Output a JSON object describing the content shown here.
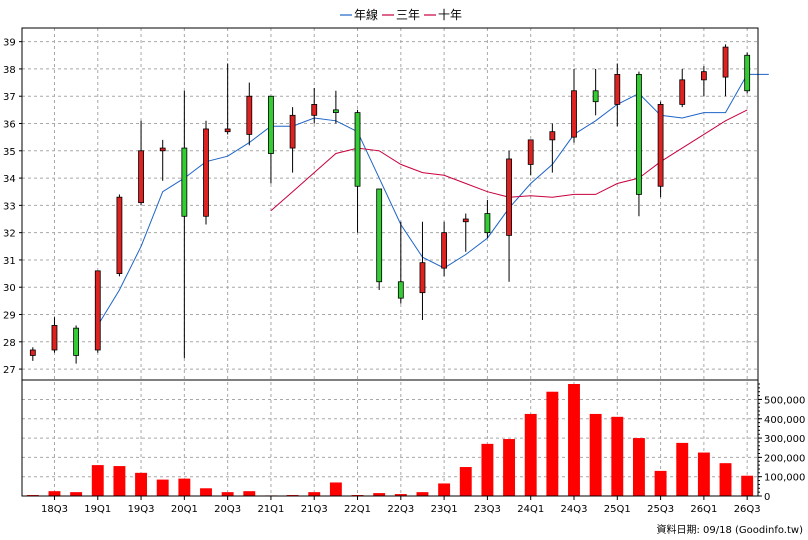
{
  "chart_data": {
    "type": "candlestick",
    "legend": [
      {
        "name": "年線",
        "color": "#1e64c8"
      },
      {
        "name": "三年",
        "color": "#c8003c"
      },
      {
        "name": "十年",
        "color": "#c8003c"
      }
    ],
    "legend_position": "top-center",
    "grid": true,
    "up_color": "#dd2222",
    "down_color": "#33cc33",
    "volume_color": "#ff0000",
    "price_axis": {
      "side": "left",
      "ticks": [
        27,
        28,
        29,
        30,
        31,
        32,
        33,
        34,
        35,
        36,
        37,
        38,
        39
      ],
      "range": [
        26.6,
        39.5
      ]
    },
    "volume_axis": {
      "side": "right",
      "ticks": [
        "0",
        "100,000",
        "200,000",
        "300,000",
        "400,000",
        "500,000"
      ],
      "tick_values": [
        0,
        100000,
        200000,
        300000,
        400000,
        500000
      ],
      "range": [
        0,
        580000
      ]
    },
    "x_labels": [
      "18Q3",
      "19Q1",
      "19Q3",
      "20Q1",
      "20Q3",
      "21Q1",
      "21Q3",
      "22Q1",
      "22Q3",
      "23Q1",
      "23Q3",
      "24Q1",
      "24Q3",
      "25Q1",
      "25Q3",
      "26Q1",
      "26Q3"
    ],
    "x_label_index": [
      1,
      3,
      5,
      7,
      9,
      11,
      13,
      15,
      17,
      19,
      21,
      23,
      25,
      27,
      29,
      31,
      33
    ],
    "candles": [
      {
        "q": "18Q2",
        "o": 27.5,
        "h": 27.8,
        "l": 27.3,
        "c": 27.7
      },
      {
        "q": "18Q3",
        "o": 27.7,
        "h": 28.9,
        "l": 27.6,
        "c": 28.6
      },
      {
        "q": "18Q4",
        "o": 28.5,
        "h": 28.6,
        "l": 27.2,
        "c": 27.5
      },
      {
        "q": "19Q1",
        "o": 27.7,
        "h": 30.6,
        "l": 27.6,
        "c": 30.6
      },
      {
        "q": "19Q2",
        "o": 30.5,
        "h": 33.4,
        "l": 30.4,
        "c": 33.3
      },
      {
        "q": "19Q3",
        "o": 33.1,
        "h": 36.1,
        "l": 33.0,
        "c": 35.0
      },
      {
        "q": "19Q4",
        "o": 35.0,
        "h": 35.4,
        "l": 33.9,
        "c": 35.1
      },
      {
        "q": "20Q1",
        "o": 35.1,
        "h": 37.2,
        "l": 27.4,
        "c": 32.6
      },
      {
        "q": "20Q2",
        "o": 32.6,
        "h": 36.1,
        "l": 32.3,
        "c": 35.8
      },
      {
        "q": "20Q3",
        "o": 35.7,
        "h": 38.2,
        "l": 35.6,
        "c": 35.8
      },
      {
        "q": "20Q4",
        "o": 35.6,
        "h": 37.5,
        "l": 35.2,
        "c": 37.0
      },
      {
        "q": "21Q1",
        "o": 37.0,
        "h": 37.0,
        "l": 33.8,
        "c": 34.9
      },
      {
        "q": "21Q2",
        "o": 35.1,
        "h": 36.6,
        "l": 34.2,
        "c": 36.3
      },
      {
        "q": "21Q3",
        "o": 36.3,
        "h": 37.3,
        "l": 36.0,
        "c": 36.7
      },
      {
        "q": "21Q4",
        "o": 36.5,
        "h": 37.2,
        "l": 36.0,
        "c": 36.4
      },
      {
        "q": "22Q1",
        "o": 36.4,
        "h": 36.5,
        "l": 32.0,
        "c": 33.7
      },
      {
        "q": "22Q2",
        "o": 33.6,
        "h": 33.6,
        "l": 29.9,
        "c": 30.2
      },
      {
        "q": "22Q3",
        "o": 30.2,
        "h": 32.4,
        "l": 29.4,
        "c": 29.6
      },
      {
        "q": "22Q4",
        "o": 29.8,
        "h": 32.4,
        "l": 28.8,
        "c": 30.9
      },
      {
        "q": "23Q1",
        "o": 30.7,
        "h": 32.4,
        "l": 30.4,
        "c": 32.0
      },
      {
        "q": "23Q2",
        "o": 32.4,
        "h": 32.7,
        "l": 31.3,
        "c": 32.5
      },
      {
        "q": "23Q3",
        "o": 32.7,
        "h": 33.2,
        "l": 31.8,
        "c": 32.0
      },
      {
        "q": "23Q4",
        "o": 31.9,
        "h": 35.0,
        "l": 30.2,
        "c": 34.7
      },
      {
        "q": "24Q1",
        "o": 34.5,
        "h": 35.4,
        "l": 34.1,
        "c": 35.4
      },
      {
        "q": "24Q2",
        "o": 35.4,
        "h": 36.0,
        "l": 34.2,
        "c": 35.7
      },
      {
        "q": "24Q3",
        "o": 35.5,
        "h": 38.0,
        "l": 35.3,
        "c": 37.2
      },
      {
        "q": "24Q4",
        "o": 37.2,
        "h": 38.0,
        "l": 36.3,
        "c": 36.8
      },
      {
        "q": "25Q1",
        "o": 36.7,
        "h": 38.2,
        "l": 35.9,
        "c": 37.8
      },
      {
        "q": "25Q2",
        "o": 37.8,
        "h": 37.9,
        "l": 32.6,
        "c": 33.4
      },
      {
        "q": "25Q3",
        "o": 33.7,
        "h": 36.8,
        "l": 33.3,
        "c": 36.7
      },
      {
        "q": "25Q4",
        "o": 36.7,
        "h": 38.0,
        "l": 36.6,
        "c": 37.6
      },
      {
        "q": "26Q1",
        "o": 37.6,
        "h": 38.1,
        "l": 37.0,
        "c": 37.9
      },
      {
        "q": "26Q2",
        "o": 37.7,
        "h": 38.9,
        "l": 37.0,
        "c": 38.8
      },
      {
        "q": "26Q3",
        "o": 38.5,
        "h": 38.6,
        "l": 37.1,
        "c": 37.2
      }
    ],
    "series": [
      {
        "name": "年線",
        "color": "#1e64c8",
        "start": 3,
        "values": [
          28.6,
          29.9,
          31.5,
          33.5,
          34.0,
          34.6,
          34.8,
          35.3,
          35.9,
          35.9,
          36.2,
          36.1,
          35.7,
          34.0,
          32.3,
          31.1,
          30.7,
          31.2,
          31.8,
          32.9,
          33.8,
          34.5,
          35.6,
          36.1,
          36.7,
          37.1,
          36.3,
          36.2,
          36.4,
          36.4,
          37.8,
          37.8
        ]
      },
      {
        "name": "十年",
        "color": "#c8003c",
        "start": 11,
        "values": [
          32.8,
          33.5,
          34.2,
          34.9,
          35.1,
          35.0,
          34.5,
          34.2,
          34.1,
          33.8,
          33.5,
          33.3,
          33.35,
          33.3,
          33.4,
          33.4,
          33.8,
          34.0,
          34.6,
          35.1,
          35.6,
          36.1,
          36.5
        ]
      }
    ],
    "volumes": [
      5000,
      25000,
      20000,
      160000,
      155000,
      120000,
      85000,
      90000,
      40000,
      20000,
      25000,
      3000,
      5000,
      20000,
      70000,
      5000,
      15000,
      10000,
      20000,
      65000,
      150000,
      270000,
      295000,
      425000,
      540000,
      580000,
      425000,
      410000,
      300000,
      130000,
      275000,
      225000,
      170000,
      105000
    ]
  },
  "footer": {
    "source": "資料日期: 09/18 (Goodinfo.tw)"
  }
}
